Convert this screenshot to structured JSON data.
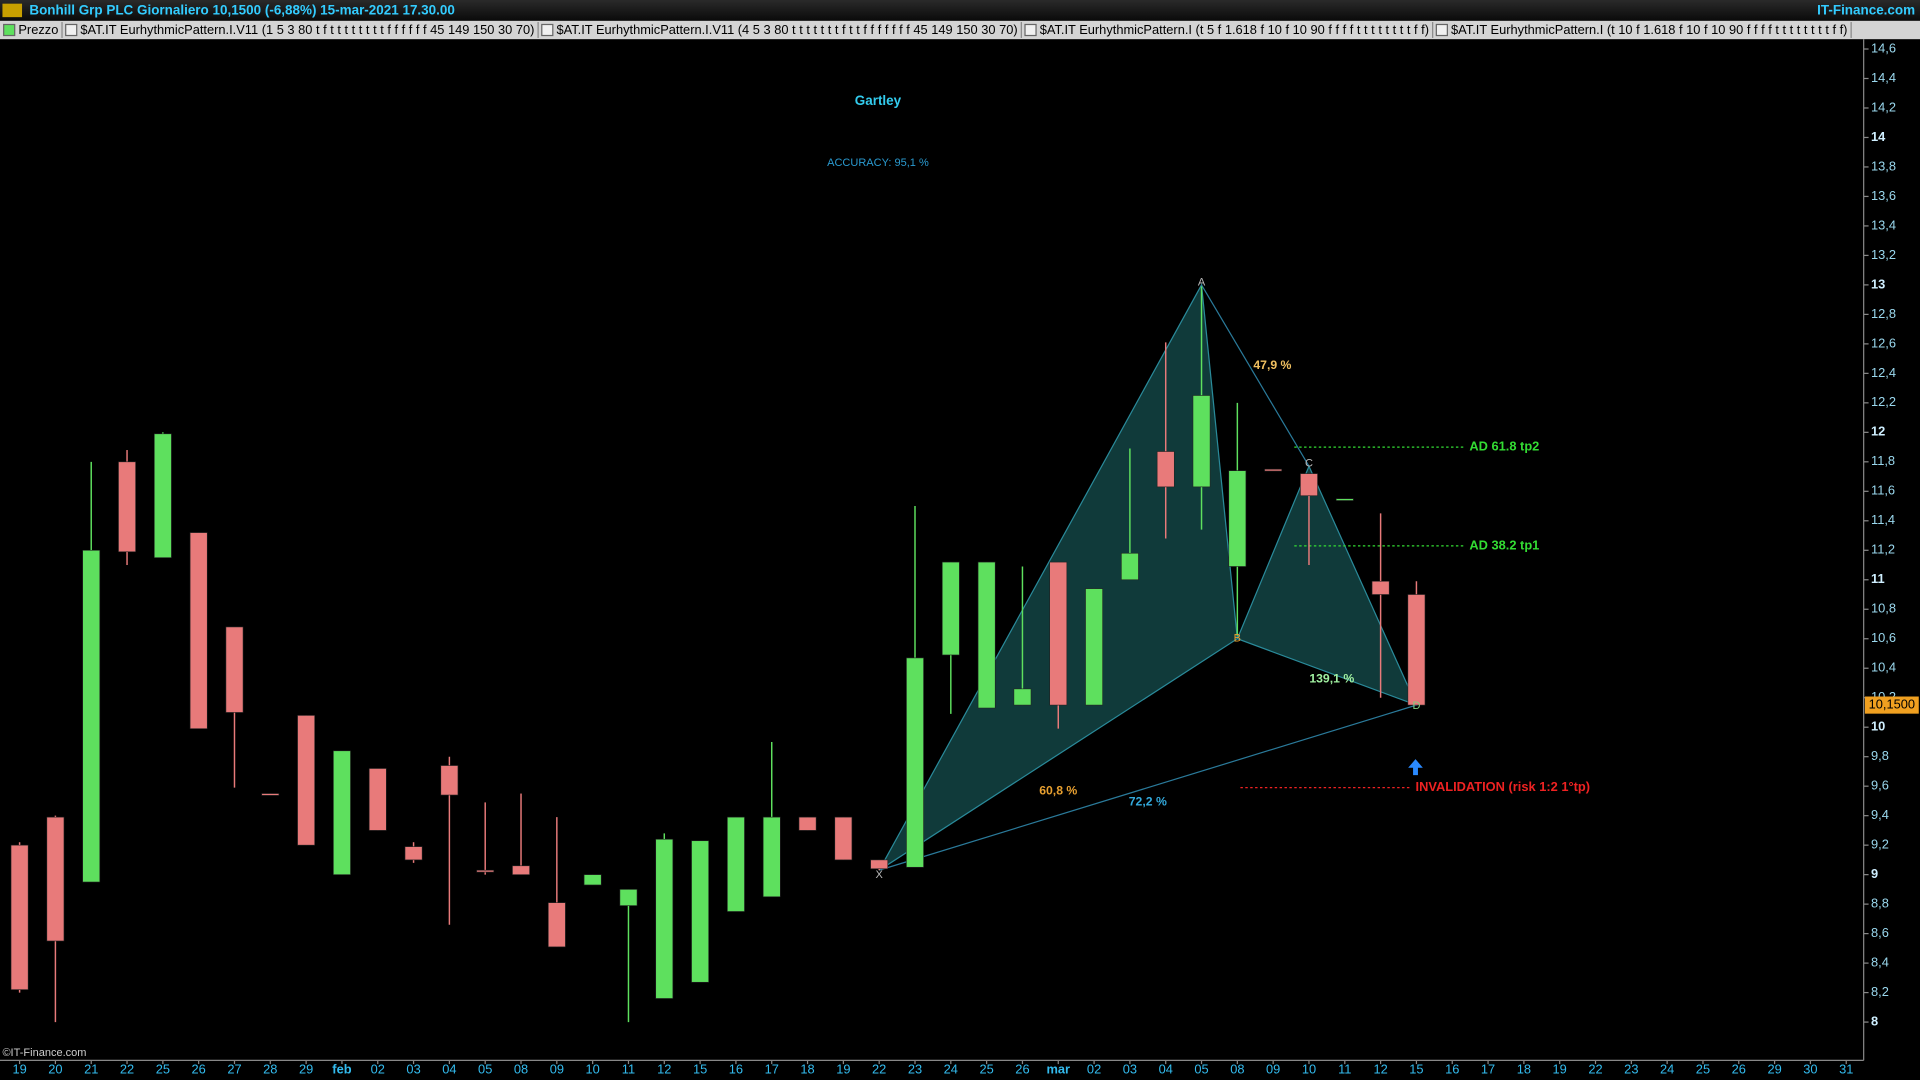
{
  "header": {
    "title": "Bonhill Grp PLC Giornaliero 10,1500 (-6,88%) 15-mar-2021 17.30.00",
    "brand": "IT-Finance.com",
    "legend": [
      "Prezzo",
      "$AT.IT EurhythmicPattern.I.V11 (1 5 3 80 t f t t t t t t t t f f f f f f 45 149 150 30 70)",
      "$AT.IT EurhythmicPattern.I.V11 (4 5 3 80 t t t t t t t f t t f f f f f f f 45 149 150 30 70)",
      "$AT.IT EurhythmicPattern.I (t 5 f 1.618 f 10 f 10 90 f f f f t t t t t t t t f f)",
      "$AT.IT EurhythmicPattern.I (t 10 f 1.618 f 10 f 10 90 f f f f t t t t t t t t f f)"
    ]
  },
  "chart_data": {
    "type": "candlestick",
    "title": "Gartley",
    "subtitle": "ACCURACY: 95,1 %",
    "footer": "©IT-Finance.com",
    "categories": [
      "19",
      "20",
      "21",
      "22",
      "25",
      "26",
      "27",
      "28",
      "29",
      "feb",
      "02",
      "03",
      "04",
      "05",
      "08",
      "09",
      "10",
      "11",
      "12",
      "15",
      "16",
      "17",
      "18",
      "19",
      "22",
      "23",
      "24",
      "25",
      "26",
      "mar",
      "02",
      "03",
      "04",
      "05",
      "08",
      "09",
      "10",
      "11",
      "12",
      "15",
      "16",
      "17",
      "18",
      "19",
      "22",
      "23",
      "24",
      "25",
      "26",
      "29",
      "30",
      "31"
    ],
    "open": [
      9.2,
      9.39,
      8.95,
      11.8,
      11.15,
      11.32,
      10.68,
      9.55,
      10.08,
      9.0,
      9.72,
      9.19,
      9.74,
      9.03,
      9.06,
      8.81,
      8.93,
      8.79,
      8.16,
      8.27,
      8.75,
      8.85,
      9.39,
      9.39,
      9.1,
      9.05,
      10.49,
      10.13,
      10.15,
      11.12,
      10.15,
      11.0,
      11.87,
      11.63,
      11.09,
      11.75,
      11.72,
      11.55,
      10.99,
      10.9,
      null,
      null,
      null,
      null,
      null,
      null,
      null,
      null,
      null,
      null,
      null,
      null
    ],
    "high": [
      9.22,
      9.4,
      11.8,
      11.88,
      12.0,
      11.32,
      10.68,
      9.55,
      10.08,
      9.84,
      9.72,
      9.22,
      9.8,
      9.49,
      9.55,
      9.39,
      9.0,
      8.9,
      9.28,
      9.23,
      9.39,
      9.9,
      9.39,
      9.39,
      9.1,
      11.5,
      11.12,
      11.12,
      11.09,
      11.12,
      10.94,
      11.89,
      12.61,
      12.99,
      12.2,
      11.75,
      11.72,
      11.55,
      11.45,
      10.99,
      null,
      null,
      null,
      null,
      null,
      null,
      null,
      null,
      null,
      null,
      null,
      null
    ],
    "low": [
      8.2,
      8.0,
      8.95,
      11.1,
      11.15,
      9.99,
      9.59,
      9.54,
      9.2,
      9.0,
      9.3,
      9.08,
      8.66,
      9.0,
      9.0,
      8.51,
      8.93,
      8.0,
      8.16,
      8.27,
      8.75,
      8.85,
      9.3,
      9.1,
      9.03,
      9.05,
      10.09,
      10.13,
      10.15,
      9.99,
      10.15,
      11.0,
      11.28,
      11.34,
      10.62,
      11.74,
      11.1,
      11.55,
      10.2,
      10.15,
      null,
      null,
      null,
      null,
      null,
      null,
      null,
      null,
      null,
      null,
      null,
      null
    ],
    "close": [
      8.22,
      8.55,
      11.2,
      11.19,
      11.99,
      9.99,
      10.1,
      9.54,
      9.2,
      9.84,
      9.3,
      9.1,
      9.54,
      9.02,
      9.0,
      8.51,
      9.0,
      8.9,
      9.24,
      9.23,
      9.39,
      9.39,
      9.3,
      9.1,
      9.04,
      10.47,
      11.12,
      11.12,
      10.26,
      10.15,
      10.94,
      11.18,
      11.63,
      12.25,
      11.74,
      11.74,
      11.57,
      11.55,
      10.9,
      10.15,
      null,
      null,
      null,
      null,
      null,
      null,
      null,
      null,
      null,
      null,
      null,
      null
    ],
    "up_color": "#5ee05e",
    "down_color": "#e87a7a",
    "ylim": [
      7.74,
      14.65
    ],
    "yticks": [
      8,
      {
        "value": 8.2,
        "label": "8,2"
      },
      {
        "value": 8.4,
        "label": "8,4"
      },
      {
        "value": 8.6,
        "label": "8,6"
      },
      {
        "value": 8.8,
        "label": "8,8"
      },
      9,
      {
        "value": 9.2,
        "label": "9,2"
      },
      {
        "value": 9.4,
        "label": "9,4"
      },
      {
        "value": 9.6,
        "label": "9,6"
      },
      {
        "value": 9.8,
        "label": "9,8"
      },
      10,
      {
        "value": 10.2,
        "label": "10,2"
      },
      {
        "value": 10.4,
        "label": "10,4"
      },
      {
        "value": 10.6,
        "label": "10,6"
      },
      {
        "value": 10.8,
        "label": "10,8"
      },
      11,
      {
        "value": 11.2,
        "label": "11,2"
      },
      {
        "value": 11.4,
        "label": "11,4"
      },
      {
        "value": 11.6,
        "label": "11,6"
      },
      {
        "value": 11.8,
        "label": "11,8"
      },
      12,
      {
        "value": 12.2,
        "label": "12,2"
      },
      {
        "value": 12.4,
        "label": "12,4"
      },
      {
        "value": 12.6,
        "label": "12,6"
      },
      {
        "value": 12.8,
        "label": "12,8"
      },
      13,
      {
        "value": 13.2,
        "label": "13,2"
      },
      {
        "value": 13.4,
        "label": "13,4"
      },
      {
        "value": 13.6,
        "label": "13,6"
      },
      {
        "value": 13.8,
        "label": "13,8"
      },
      14,
      {
        "value": 14.2,
        "label": "14,2"
      },
      {
        "value": 14.4,
        "label": "14,4"
      },
      {
        "value": 14.6,
        "label": "14,6"
      }
    ],
    "last_price": {
      "value": 10.15,
      "label": "10,1500"
    },
    "pattern": {
      "labels": [
        "X",
        "A",
        "B",
        "C",
        "D"
      ],
      "x": [
        24,
        33,
        34,
        36,
        39
      ],
      "values": [
        9.03,
        13.0,
        10.6,
        11.77,
        10.15
      ],
      "ratios": [
        {
          "label": "47,9 %",
          "color": "#f0c060"
        },
        {
          "label": "60,8 %",
          "color": "#e8a030"
        },
        {
          "label": "139,1 %",
          "color": "#a0f0a0"
        },
        {
          "label": "72,2 %",
          "color": "#33aadd"
        }
      ]
    },
    "levels": [
      {
        "label": "AD 61.8 tp2",
        "value": 11.9,
        "color": "#33dd33"
      },
      {
        "label": "AD 38.2 tp1",
        "value": 11.23,
        "color": "#33dd33"
      },
      {
        "label": "INVALIDATION (risk 1:2 1°tp)",
        "value": 9.59,
        "color": "#ee2222"
      }
    ]
  }
}
